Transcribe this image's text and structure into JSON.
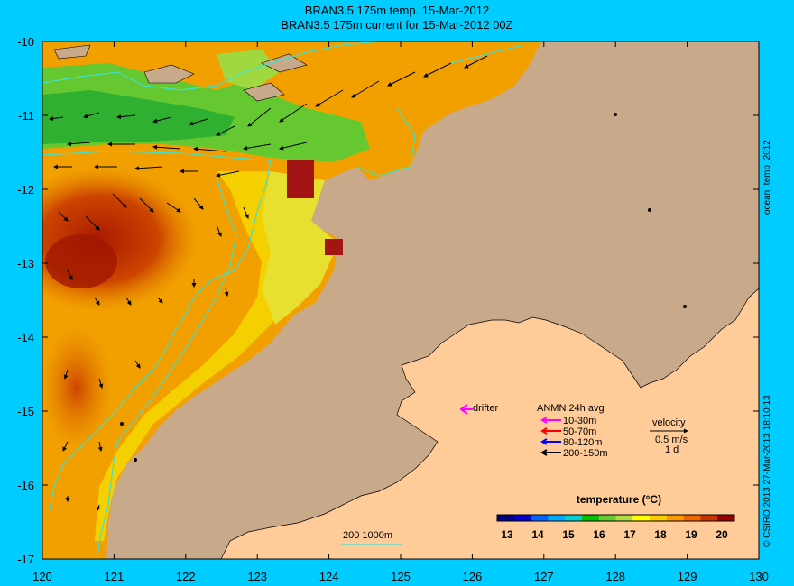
{
  "title_line1": "BRAN3.5 175m temp. 15-Mar-2012",
  "title_line2": "BRAN3.5 175m current for 15-Mar-2012 00Z",
  "side_label": "ocean_temp_2012",
  "credit": "© CSIRO 2013   27-Mar-2013 18:10:13",
  "axes": {
    "x_ticks": [
      "120",
      "121",
      "122",
      "123",
      "124",
      "125",
      "126",
      "127",
      "128",
      "129",
      "130"
    ],
    "y_ticks": [
      "-10",
      "-11",
      "-12",
      "-13",
      "-14",
      "-15",
      "-16",
      "-17"
    ]
  },
  "legend": {
    "drifter": "drifter",
    "anmn_title": "ANMN 24h avg",
    "depths": [
      {
        "label": "10-30m",
        "color": "#ff00ff"
      },
      {
        "label": "50-70m",
        "color": "#ff0000"
      },
      {
        "label": "80-120m",
        "color": "#0000ff"
      },
      {
        "label": "200-150m",
        "color": "#000000"
      }
    ],
    "velocity_title": "velocity",
    "velocity_scale": "0.5 m/s",
    "velocity_time": "1 d",
    "isobath": "200  1000m"
  },
  "colorbar": {
    "title": "temperature (°C)",
    "labels": [
      "13",
      "14",
      "15",
      "16",
      "17",
      "18",
      "19",
      "20"
    ],
    "colors": [
      "#000080",
      "#0000cd",
      "#0066ff",
      "#00aaff",
      "#00d0d0",
      "#00c000",
      "#66cc33",
      "#b0dd40",
      "#ffff00",
      "#ffcc00",
      "#ff9900",
      "#ee6600",
      "#cc3300",
      "#990000"
    ]
  },
  "colors": {
    "land": "#c8a98a",
    "frame": "#00ccff",
    "contour": "#40e0d0"
  }
}
